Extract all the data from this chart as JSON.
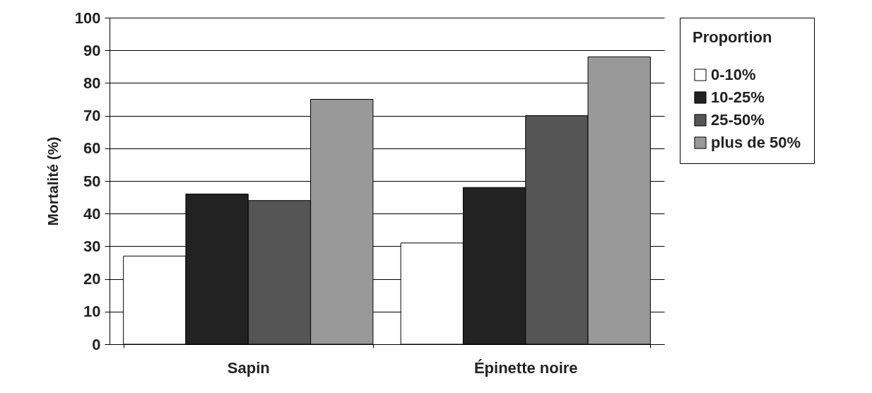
{
  "chart_data": {
    "type": "bar",
    "ylabel": "Mortalité (%)",
    "legend_title": "Proportion",
    "categories": [
      "Sapin",
      "Épinette noire"
    ],
    "series": [
      {
        "name": "0-10%",
        "color": "#ffffff",
        "values": [
          27,
          31
        ]
      },
      {
        "name": "10-25%",
        "color": "#222222",
        "values": [
          46,
          48
        ]
      },
      {
        "name": "25-50%",
        "color": "#555555",
        "values": [
          44,
          70
        ]
      },
      {
        "name": "plus de 50%",
        "color": "#999999",
        "values": [
          75,
          88
        ]
      }
    ],
    "ylim": [
      0,
      100
    ],
    "yticks": [
      0,
      10,
      20,
      30,
      40,
      50,
      60,
      70,
      80,
      90,
      100
    ],
    "grid": "y",
    "legend": "right"
  }
}
